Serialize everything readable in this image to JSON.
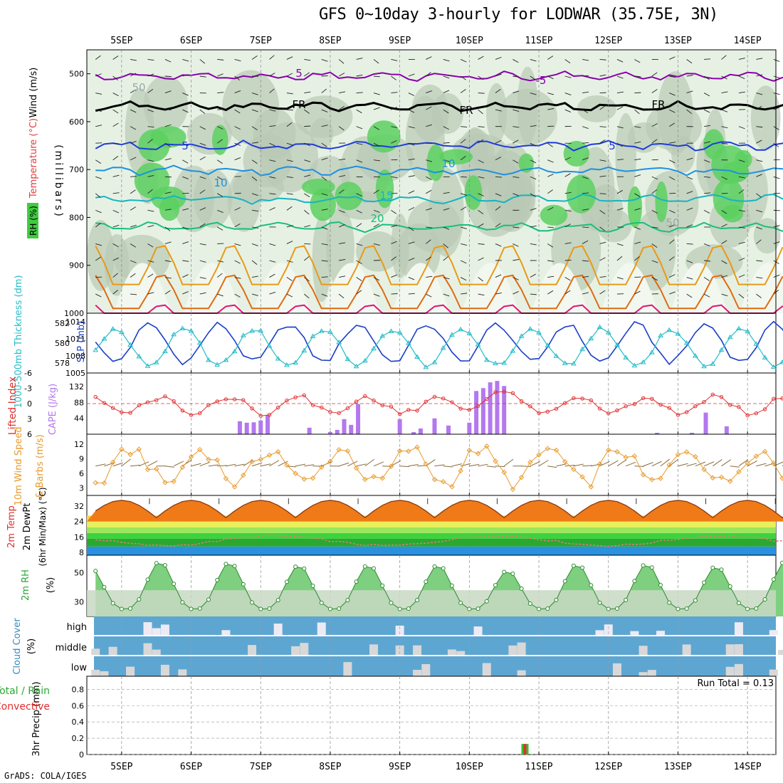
{
  "title": "GFS 0~10day 3-hourly for LODWAR (35.75E, 3N)",
  "footer": "GrADS: COLA/IGES",
  "dates": [
    "5SEP",
    "6SEP",
    "7SEP",
    "8SEP",
    "9SEP",
    "10SEP",
    "11SEP",
    "12SEP",
    "13SEP",
    "14SEP"
  ],
  "colors": {
    "purple": "#8800aa",
    "black": "#000000",
    "blue": "#1e3cd8",
    "lightblue": "#1e90e0",
    "teal": "#16b4c0",
    "green": "#18c07a",
    "orange": "#e89a18",
    "darkorange": "#e06a10",
    "magenta": "#e0157a",
    "rh_band": "#3fcc3f",
    "thick": "#1a3fc8",
    "slp": "#24bcc8",
    "lifted": "#e03030",
    "cape": "#b478ee",
    "wind": "#e89a2a",
    "barb": "#8a6a3a",
    "cloud": "#5ea6d2",
    "cloud_fill": "#eeeaf4",
    "dewpt": "#e07a7a"
  },
  "chart_data": [
    {
      "panel": "upper_air",
      "type": "heatmap",
      "ylabel": "(millibars)",
      "ylabels": [
        "Wind (m/s)",
        "Temperature (°C)",
        "RH (%)"
      ],
      "yticks": [
        500,
        600,
        700,
        800,
        900,
        1000
      ],
      "ylim": [
        1000,
        450
      ],
      "contour_labels": [
        "5",
        "-5",
        "FR",
        "FR",
        "FR",
        "5",
        "5",
        "10",
        "10",
        "15",
        "20",
        "50",
        "50"
      ],
      "isotherms": [
        {
          "name": "-5",
          "pressure_mean": 505
        },
        {
          "name": "FR",
          "pressure_mean": 568
        },
        {
          "name": "5",
          "pressure_mean": 650
        },
        {
          "name": "10",
          "pressure_mean": 702
        },
        {
          "name": "15",
          "pressure_mean": 762
        },
        {
          "name": "20",
          "pressure_mean": 820
        }
      ]
    },
    {
      "panel": "thickness_slp",
      "type": "line",
      "ylabels": [
        "1000-500mb Thickness (dm)",
        "SLP (mb)"
      ],
      "yticks_left": [
        578,
        580,
        582
      ],
      "yticks_right": [
        1005,
        1008,
        1011,
        1014
      ],
      "series": [
        {
          "name": "1000-500mb Thickness (dm)",
          "mean": 580,
          "amp": 1.9
        },
        {
          "name": "SLP (mb)",
          "mean": 1009.5,
          "amp": 3.2
        }
      ]
    },
    {
      "panel": "stability",
      "type": "bar",
      "ylabels": [
        "Lifted Index",
        "CAPE (J/kg)"
      ],
      "yticks_left": [
        -6,
        -3,
        0,
        3,
        6
      ],
      "yticks_right": [
        44,
        88,
        132
      ],
      "series": [
        {
          "name": "Lifted Index",
          "mean": 0.3,
          "amp": 1.6
        },
        {
          "name": "CAPE (J/kg)",
          "values": [
            [
              6.7,
              36
            ],
            [
              6.8,
              32
            ],
            [
              6.9,
              33
            ],
            [
              7.0,
              38
            ],
            [
              7.1,
              54
            ],
            [
              7.7,
              18
            ],
            [
              8.0,
              6
            ],
            [
              8.1,
              12
            ],
            [
              8.2,
              42
            ],
            [
              8.3,
              26
            ],
            [
              8.4,
              84
            ],
            [
              9.0,
              42
            ],
            [
              9.2,
              6
            ],
            [
              9.3,
              16
            ],
            [
              9.5,
              44
            ],
            [
              9.7,
              24
            ],
            [
              10.0,
              32
            ],
            [
              10.1,
              120
            ],
            [
              10.2,
              128
            ],
            [
              10.3,
              144
            ],
            [
              10.4,
              148
            ],
            [
              10.5,
              134
            ],
            [
              12.7,
              4
            ],
            [
              13.2,
              4
            ],
            [
              13.4,
              60
            ],
            [
              13.7,
              22
            ]
          ]
        }
      ]
    },
    {
      "panel": "wind10m",
      "type": "line",
      "ylabels": [
        "10m Wind Speed",
        "& Barbs (m/s)"
      ],
      "yticks": [
        3,
        6,
        9,
        12
      ],
      "series": [
        {
          "name": "10m Wind Speed",
          "mean": 7.5,
          "amp": 3.5
        }
      ]
    },
    {
      "panel": "temp2m",
      "type": "area",
      "ylabels": [
        "2m Temp",
        "2m DewPt",
        "(6hr Min/Max) (°C)"
      ],
      "yticks": [
        8,
        16,
        24,
        32
      ],
      "series": [
        {
          "name": "2m Temp",
          "min": 26,
          "max": 35
        },
        {
          "name": "2m DewPt",
          "mean": 14,
          "amp": 2.5
        }
      ]
    },
    {
      "panel": "rh2m",
      "type": "area",
      "ylabels": [
        "2m RH",
        "(%)"
      ],
      "yticks": [
        30,
        50
      ],
      "series": [
        {
          "name": "2m RH",
          "min": 25,
          "max": 56
        }
      ]
    },
    {
      "panel": "cloud",
      "type": "bar",
      "ylabels": [
        "Cloud Cover",
        "(%)"
      ],
      "layers": [
        "high",
        "middle",
        "low"
      ]
    },
    {
      "panel": "precip",
      "type": "bar",
      "ylabels": [
        "3hr Precip (mm)",
        "Total / Rain",
        "Convective"
      ],
      "yticks": [
        0,
        0.2,
        0.4,
        0.6,
        0.8
      ],
      "run_total": "Run Total = 0.13",
      "values": [
        [
          10.8,
          0.13
        ]
      ]
    }
  ]
}
